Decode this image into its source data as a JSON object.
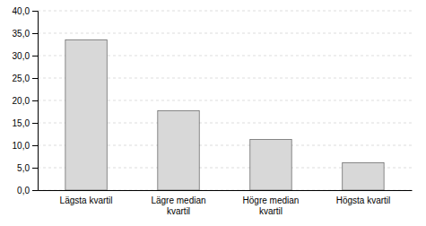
{
  "chart_data": {
    "type": "bar",
    "categories": [
      "Lägsta kvartil",
      "Lägre median\nkvartil",
      "Högre median\nkvartil",
      "Högsta kvartil"
    ],
    "values": [
      33.5,
      17.7,
      11.3,
      6.1
    ],
    "color": "#d8d8d8",
    "ylim": [
      0,
      40
    ],
    "yticks": [
      {
        "value": 0.0,
        "label": "0,0"
      },
      {
        "value": 5.0,
        "label": "5,0"
      },
      {
        "value": 10.0,
        "label": "10,0"
      },
      {
        "value": 15.0,
        "label": "15,0"
      },
      {
        "value": 20.0,
        "label": "20,0"
      },
      {
        "value": 25.0,
        "label": "25,0"
      },
      {
        "value": 30.0,
        "label": "30,0"
      },
      {
        "value": 35.0,
        "label": "35,0"
      },
      {
        "value": 40.0,
        "label": "40,0"
      }
    ],
    "grid": true
  }
}
